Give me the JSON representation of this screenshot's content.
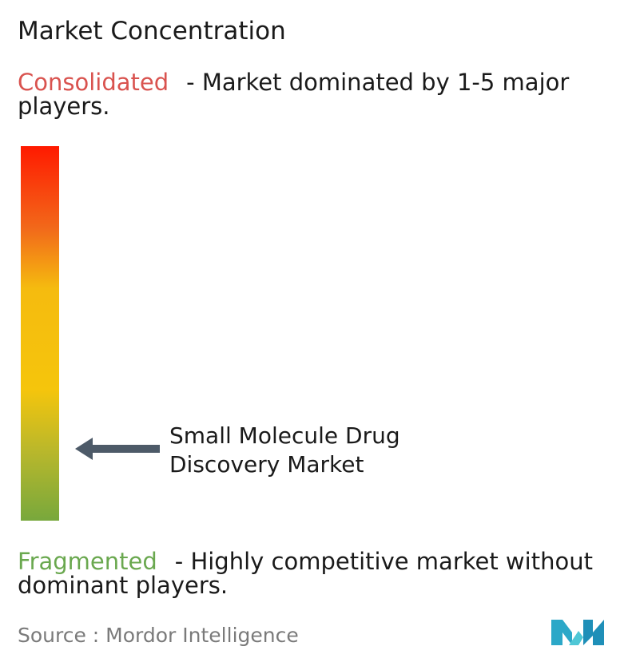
{
  "title": "Market Concentration",
  "consolidated": {
    "label": "Consolidated",
    "description": "- Market dominated by 1-5 major players.",
    "color": "#d9534f"
  },
  "fragmented": {
    "label": "Fragmented",
    "description": "- Highly competitive market without dominant players.",
    "color": "#6aa84f"
  },
  "gradient_colors": [
    "#ff1a00",
    "#f2691a",
    "#f5bb0f",
    "#f5c50c",
    "#b7b72c",
    "#78a83c"
  ],
  "marker": {
    "line1": "Small Molecule Drug",
    "line2": "Discovery Market",
    "arrow_color": "#4d5a68"
  },
  "source": "Source :  Mordor Intelligence",
  "logo_icon": "mordor-intelligence-logo",
  "chart_data": {
    "type": "bar",
    "categories": [
      "Small Molecule Drug Discovery Market"
    ],
    "values": [
      0.18
    ],
    "scale": [
      "Fragmented",
      "Consolidated"
    ],
    "title": "Market Concentration",
    "xlabel": "",
    "ylabel": "",
    "ylim": [
      0,
      1
    ],
    "grid": false,
    "legend": "none"
  }
}
